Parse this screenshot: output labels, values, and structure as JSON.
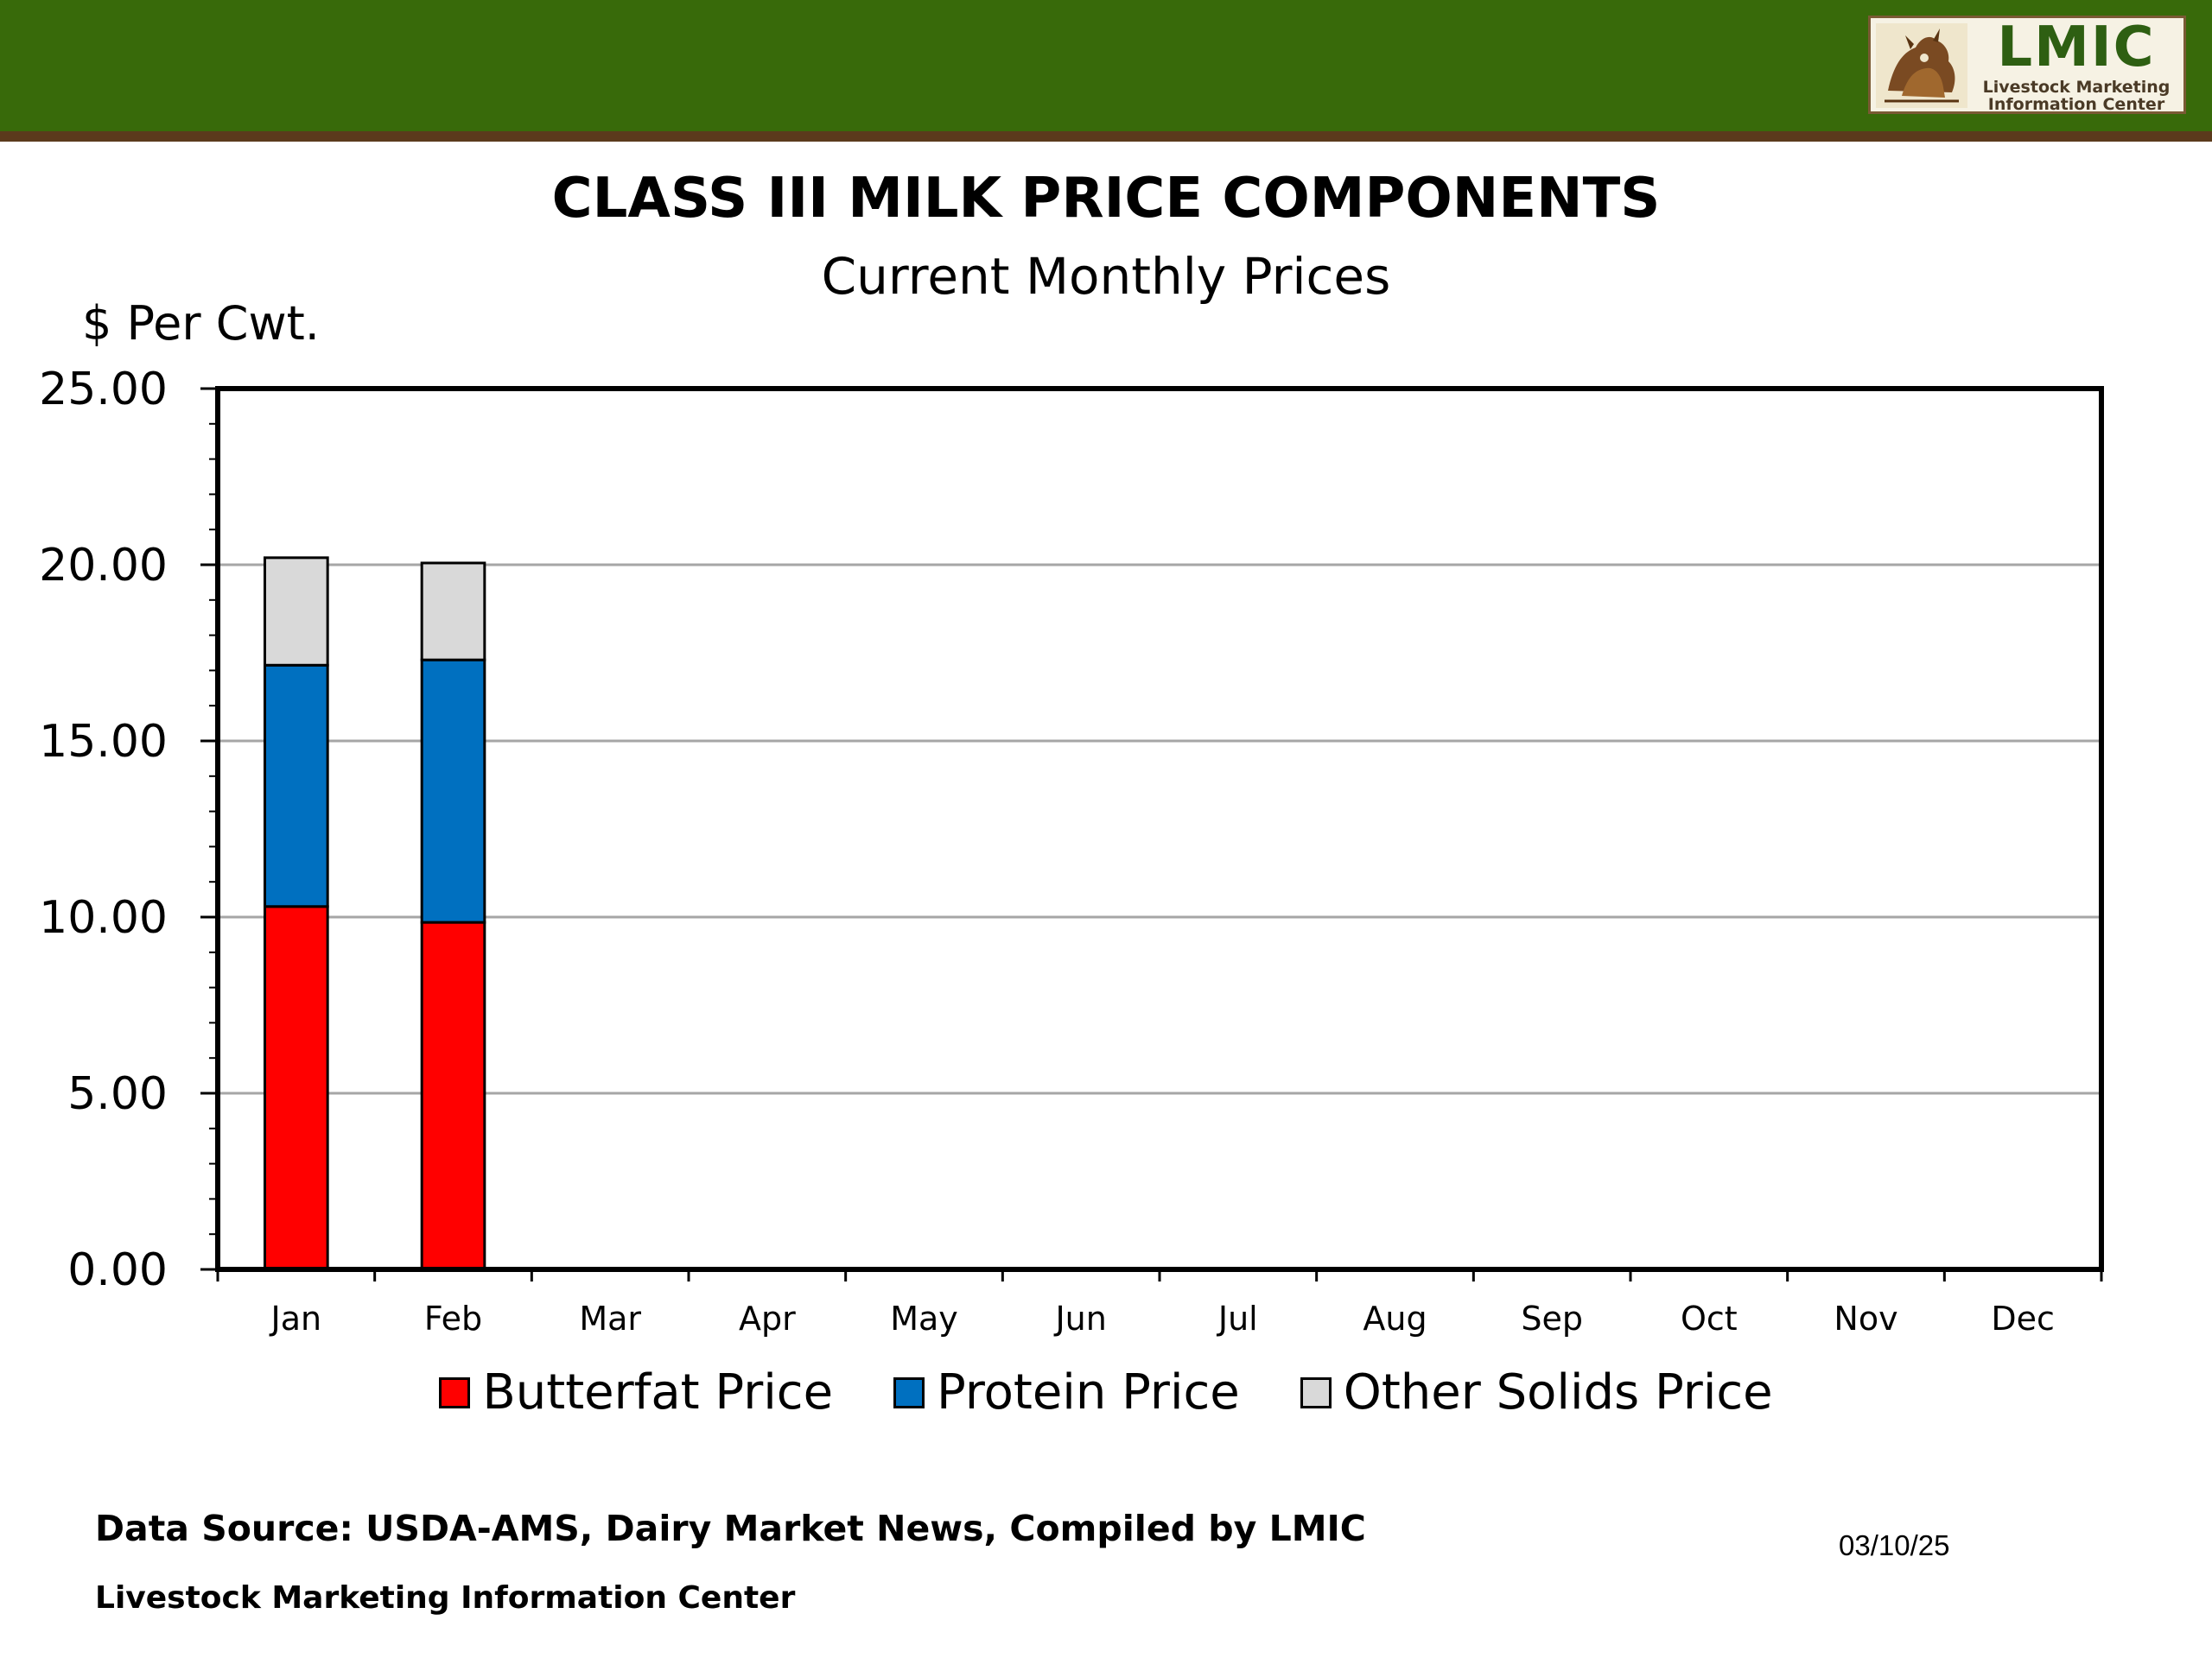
{
  "logo": {
    "wordmark": "LMIC",
    "tagline_line1": "Livestock Marketing",
    "tagline_line2": "Information Center"
  },
  "footer": {
    "source": "Data Source:  USDA-AMS, Dairy Market News, Compiled by LMIC",
    "organization": "Livestock Marketing Information Center",
    "date": "03/10/25"
  },
  "colors": {
    "banner": "#386a0a",
    "banner_stripe": "#5b3a1c",
    "gridline": "#a6a6a6"
  },
  "chart_data": {
    "type": "bar",
    "stacked": true,
    "title": "CLASS III MILK PRICE COMPONENTS",
    "subtitle": "Current Monthly Prices",
    "ylabel": "$ Per Cwt.",
    "xlabel": "",
    "ylim": [
      0,
      25
    ],
    "yticks": [
      "0.00",
      "5.00",
      "10.00",
      "15.00",
      "20.00",
      "25.00"
    ],
    "ytick_values": [
      0,
      5,
      10,
      15,
      20,
      25
    ],
    "grid": true,
    "legend_position": "bottom",
    "categories": [
      "Jan",
      "Feb",
      "Mar",
      "Apr",
      "May",
      "Jun",
      "Jul",
      "Aug",
      "Sep",
      "Oct",
      "Nov",
      "Dec"
    ],
    "series": [
      {
        "name": "Butterfat Price",
        "color": "#ff0000",
        "values": [
          10.3,
          9.85,
          null,
          null,
          null,
          null,
          null,
          null,
          null,
          null,
          null,
          null
        ]
      },
      {
        "name": "Protein Price",
        "color": "#0070c0",
        "values": [
          6.85,
          7.45,
          null,
          null,
          null,
          null,
          null,
          null,
          null,
          null,
          null,
          null
        ]
      },
      {
        "name": "Other Solids Price",
        "color": "#d9d9d9",
        "values": [
          3.05,
          2.75,
          null,
          null,
          null,
          null,
          null,
          null,
          null,
          null,
          null,
          null
        ]
      }
    ]
  }
}
